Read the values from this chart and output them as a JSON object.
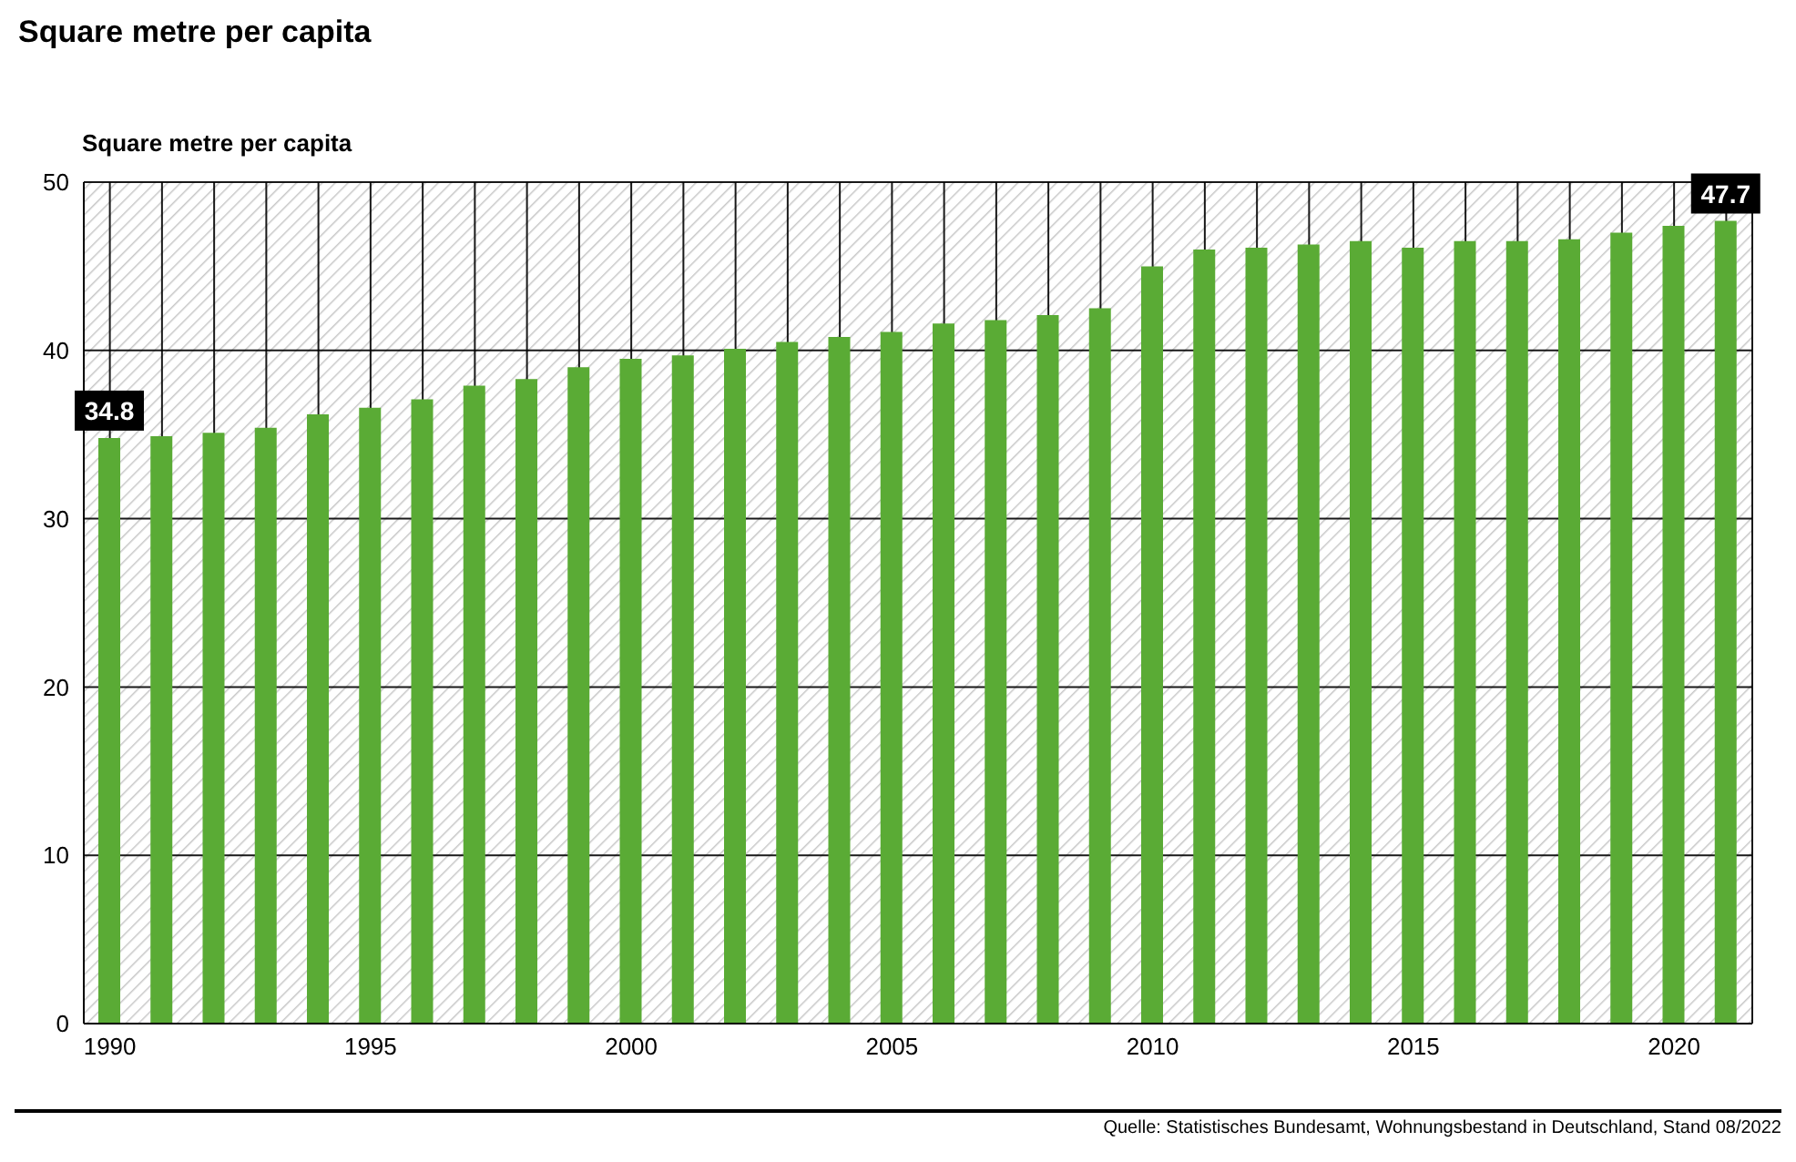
{
  "chart_data": {
    "type": "bar",
    "title": "Square metre per capita",
    "ylabel": "Square metre per capita",
    "categories": [
      "1990",
      null,
      null,
      null,
      null,
      "1995",
      null,
      null,
      null,
      null,
      "2000",
      null,
      null,
      null,
      null,
      "2005",
      null,
      null,
      null,
      null,
      "2010",
      null,
      null,
      null,
      null,
      "2015",
      null,
      null,
      null,
      null,
      "2020",
      null
    ],
    "values": [
      34.8,
      34.9,
      35.1,
      35.4,
      36.2,
      36.6,
      37.1,
      37.9,
      38.3,
      39.0,
      39.5,
      39.7,
      40.1,
      40.5,
      40.8,
      41.1,
      41.6,
      41.8,
      42.1,
      42.5,
      45.0,
      46.0,
      46.1,
      46.3,
      46.5,
      46.1,
      46.5,
      46.5,
      46.6,
      47.0,
      47.4,
      47.7
    ],
    "value_labels": [
      "34.8",
      null,
      null,
      null,
      null,
      null,
      null,
      null,
      null,
      null,
      null,
      null,
      null,
      null,
      null,
      null,
      null,
      null,
      null,
      null,
      null,
      null,
      null,
      null,
      null,
      null,
      null,
      null,
      null,
      null,
      null,
      "47.7"
    ],
    "color": "#5aab35",
    "ylim": [
      0,
      50
    ],
    "yticks": [
      0,
      10,
      20,
      30,
      40,
      50
    ],
    "grid": true,
    "annotations": [
      "Quelle: Statistisches Bundesamt, Wohnungsbestand in Deutschland, Stand 08/2022"
    ]
  }
}
